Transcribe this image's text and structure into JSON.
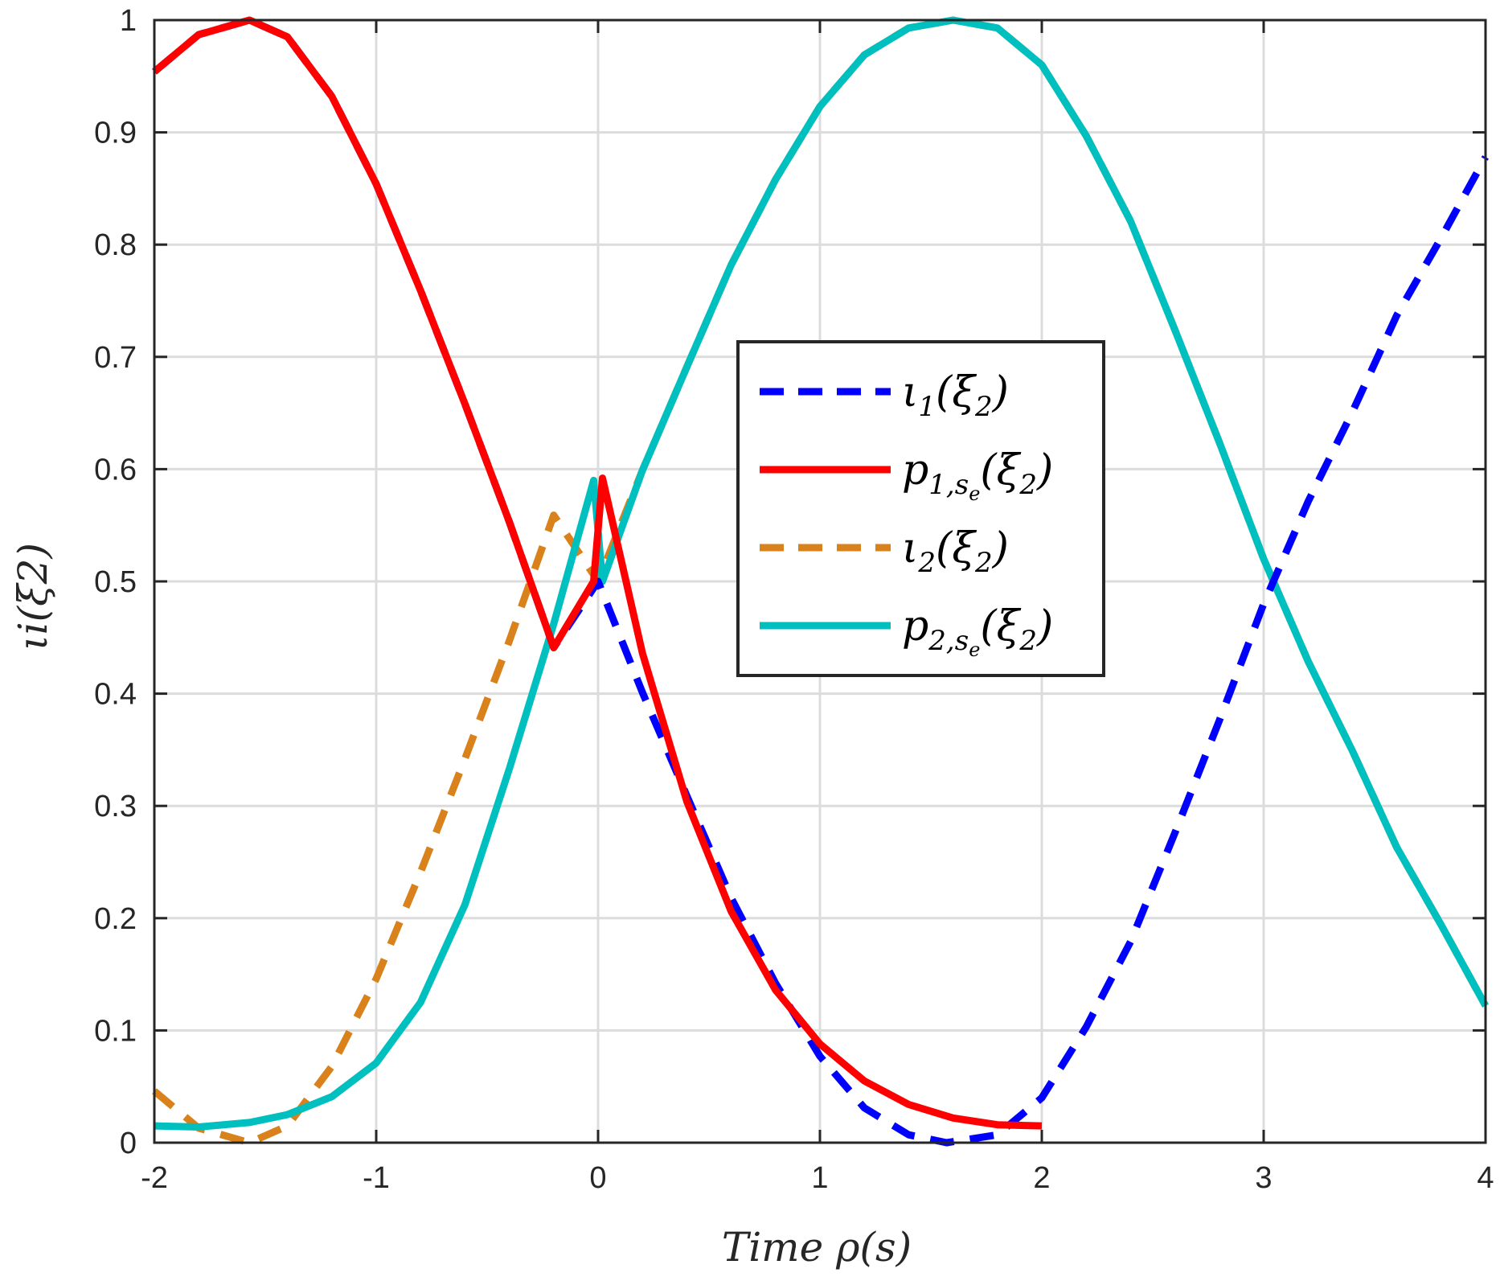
{
  "chart_data": {
    "type": "line",
    "xlabel": "Time ρ(s)",
    "ylabel": "ιi(ξ2)",
    "xlim": [
      -2,
      4
    ],
    "ylim": [
      0,
      1
    ],
    "xticks": [
      "-2",
      "-1",
      "0",
      "1",
      "2",
      "3",
      "4"
    ],
    "yticks": [
      "0",
      "0.1",
      "0.2",
      "0.3",
      "0.4",
      "0.5",
      "0.6",
      "0.7",
      "0.8",
      "0.9",
      "1"
    ],
    "grid": true,
    "legend_position": "center",
    "series": [
      {
        "name": "ι1(ξ2)",
        "legend": {
          "base": "ι",
          "sub": "1",
          "subsub": "",
          "arg": "(ξ",
          "argsub": "2",
          "close": ")"
        },
        "color": "#0000ff",
        "style": "dashed",
        "x": [
          -2,
          -1.8,
          -1.571,
          -1.4,
          -1.2,
          -1,
          -0.8,
          -0.6,
          -0.4,
          -0.2,
          0,
          0.2,
          0.4,
          0.6,
          0.8,
          1,
          1.2,
          1.4,
          1.571,
          1.8,
          2,
          2.2,
          2.4,
          2.6,
          2.8,
          3,
          3.2,
          3.4,
          3.6,
          3.8,
          4
        ],
        "y": [
          0.954,
          0.987,
          1.0,
          0.985,
          0.932,
          0.854,
          0.759,
          0.658,
          0.553,
          0.441,
          0.5,
          0.401,
          0.309,
          0.218,
          0.142,
          0.077,
          0.031,
          0.007,
          0.0,
          0.007,
          0.04,
          0.103,
          0.179,
          0.276,
          0.376,
          0.48,
          0.571,
          0.651,
          0.737,
          0.806,
          0.878
        ]
      },
      {
        "name": "p1,se(ξ2)",
        "legend": {
          "base": "p",
          "sub": "1,s",
          "subsub": "e",
          "arg": "(ξ",
          "argsub": "2",
          "close": ")"
        },
        "color": "#ff0000",
        "style": "solid",
        "x": [
          -2,
          -1.8,
          -1.571,
          -1.4,
          -1.2,
          -1,
          -0.8,
          -0.6,
          -0.4,
          -0.2,
          -0.02,
          0.02,
          0.2,
          0.4,
          0.6,
          0.8,
          1,
          1.2,
          1.4,
          1.6,
          1.8,
          2
        ],
        "y": [
          0.954,
          0.987,
          1.0,
          0.985,
          0.932,
          0.854,
          0.759,
          0.658,
          0.553,
          0.441,
          0.5,
          0.592,
          0.436,
          0.304,
          0.206,
          0.136,
          0.088,
          0.055,
          0.034,
          0.022,
          0.016,
          0.015
        ]
      },
      {
        "name": "ι2(ξ2)",
        "legend": {
          "base": "ι",
          "sub": "2",
          "subsub": "",
          "arg": "(ξ",
          "argsub": "2",
          "close": ")"
        },
        "color": "#d9821c",
        "style": "dashed",
        "x": [
          -2,
          -1.8,
          -1.571,
          -1.4,
          -1.2,
          -1,
          -0.8,
          -0.6,
          -0.4,
          -0.2,
          0,
          0.2,
          0.4,
          0.6,
          0.8,
          1,
          1.2,
          1.4,
          1.6,
          1.8,
          2,
          2.2,
          2.4,
          2.6,
          2.8,
          3,
          3.2,
          3.4,
          3.6,
          3.8,
          4
        ],
        "y": [
          0.046,
          0.013,
          0.0,
          0.015,
          0.068,
          0.146,
          0.241,
          0.342,
          0.447,
          0.559,
          0.5,
          0.599,
          0.691,
          0.782,
          0.858,
          0.923,
          0.969,
          0.993,
          1.0,
          0.993,
          0.96,
          0.897,
          0.821,
          0.724,
          0.624,
          0.52,
          0.429,
          0.349,
          0.263,
          0.194,
          0.122
        ]
      },
      {
        "name": "p2,se(ξ2)",
        "legend": {
          "base": "p",
          "sub": "2,s",
          "subsub": "e",
          "arg": "(ξ",
          "argsub": "2",
          "close": ")"
        },
        "color": "#00bfbf",
        "style": "solid",
        "x": [
          -2,
          -1.8,
          -1.571,
          -1.4,
          -1.2,
          -1,
          -0.8,
          -0.6,
          -0.4,
          -0.2,
          -0.02,
          0.02,
          0.2,
          0.4,
          0.6,
          0.8,
          1,
          1.2,
          1.4,
          1.6,
          1.8,
          2,
          2.2,
          2.4,
          2.6,
          2.8,
          3,
          3.2,
          3.4,
          3.6,
          3.8,
          4
        ],
        "y": [
          0.015,
          0.014,
          0.018,
          0.025,
          0.041,
          0.071,
          0.125,
          0.212,
          0.333,
          0.462,
          0.59,
          0.5,
          0.599,
          0.691,
          0.782,
          0.858,
          0.923,
          0.969,
          0.993,
          1.0,
          0.993,
          0.96,
          0.897,
          0.821,
          0.724,
          0.624,
          0.52,
          0.429,
          0.349,
          0.263,
          0.194,
          0.122
        ]
      }
    ]
  }
}
